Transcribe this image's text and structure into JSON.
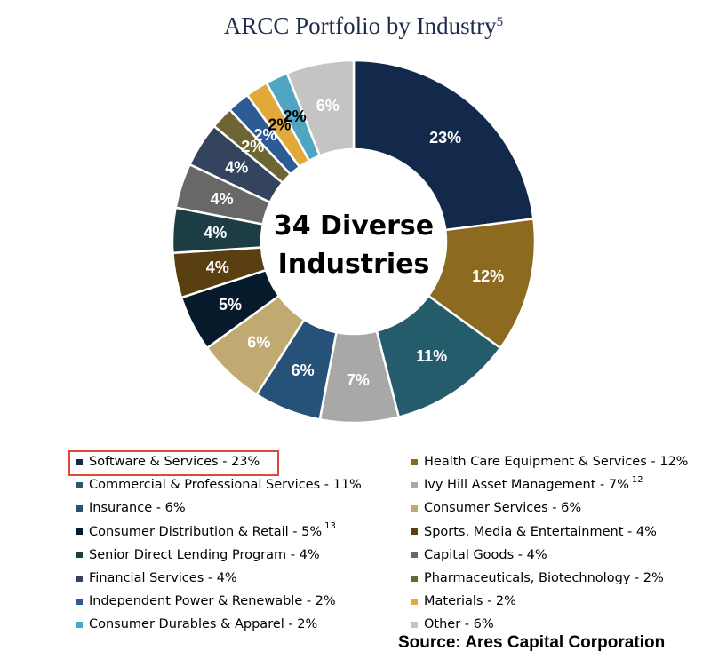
{
  "title": "ARCC Portfolio by Industry",
  "title_superscript": "5",
  "center_label_line1": "34 Diverse",
  "center_label_line2": "Industries",
  "source": "Source: Ares Capital Corporation",
  "chart_data": {
    "type": "pie",
    "title": "ARCC Portfolio by Industry",
    "slices": [
      {
        "name": "Software & Services",
        "value": 23,
        "label": "23%",
        "color": "#13294b",
        "label_color": "#ffffff"
      },
      {
        "name": "Health Care Equipment & Services",
        "value": 12,
        "label": "12%",
        "color": "#8c6a1f",
        "label_color": "#ffffff"
      },
      {
        "name": "Commercial & Professional Services",
        "value": 11,
        "label": "11%",
        "color": "#245c6b",
        "label_color": "#ffffff"
      },
      {
        "name": "Ivy Hill Asset Management",
        "value": 7,
        "label": "7%",
        "color": "#a8a8a6",
        "label_color": "#ffffff"
      },
      {
        "name": "Insurance",
        "value": 6,
        "label": "6%",
        "color": "#26527a",
        "label_color": "#ffffff"
      },
      {
        "name": "Consumer Services",
        "value": 6,
        "label": "6%",
        "color": "#c0aa72",
        "label_color": "#ffffff"
      },
      {
        "name": "Consumer Distribution & Retail",
        "value": 5,
        "label": "5%",
        "color": "#071a2b",
        "label_color": "#ffffff"
      },
      {
        "name": "Sports, Media & Entertainment",
        "value": 4,
        "label": "4%",
        "color": "#5a3f10",
        "label_color": "#ffffff"
      },
      {
        "name": "Senior Direct Lending Program",
        "value": 4,
        "label": "4%",
        "color": "#1c3d44",
        "label_color": "#ffffff"
      },
      {
        "name": "Capital Goods",
        "value": 4,
        "label": "4%",
        "color": "#686868",
        "label_color": "#ffffff"
      },
      {
        "name": "Financial Services",
        "value": 4,
        "label": "4%",
        "color": "#34435e",
        "label_color": "#ffffff"
      },
      {
        "name": "Pharmaceuticals, Biotechnology",
        "value": 2,
        "label": "2%",
        "color": "#6e6535",
        "label_color": "#ffffff"
      },
      {
        "name": "Independent Power & Renewable",
        "value": 2,
        "label": "2%",
        "color": "#2d5b95",
        "label_color": "#ffffff"
      },
      {
        "name": "Materials",
        "value": 2,
        "label": "2%",
        "color": "#e0a93a",
        "label_color": "#000000"
      },
      {
        "name": "Consumer Durables & Apparel",
        "value": 2,
        "label": "2%",
        "color": "#4fa5c2",
        "label_color": "#000000"
      },
      {
        "name": "Other",
        "value": 6,
        "label": "6%",
        "color": "#c4c4c2",
        "label_color": "#ffffff"
      }
    ]
  },
  "legend": [
    {
      "text": "Software & Services - 23%",
      "sup": "",
      "color": "#13294b",
      "highlighted": true
    },
    {
      "text": "Health Care Equipment & Services - 12%",
      "sup": "",
      "color": "#8c6a1f"
    },
    {
      "text": "Commercial & Professional Services - 11%",
      "sup": "",
      "color": "#245c6b"
    },
    {
      "text": "Ivy Hill Asset Management  - 7%",
      "sup": "12",
      "color": "#a8a8a6"
    },
    {
      "text": "Insurance - 6%",
      "sup": "",
      "color": "#26527a"
    },
    {
      "text": "Consumer Services - 6%",
      "sup": "",
      "color": "#c0aa72"
    },
    {
      "text": "Consumer Distribution & Retail  - 5%",
      "sup": "13",
      "color": "#071a2b"
    },
    {
      "text": "Sports, Media & Entertainment - 4%",
      "sup": "",
      "color": "#5a3f10"
    },
    {
      "text": "Senior Direct Lending Program - 4%",
      "sup": "",
      "color": "#1c3d44"
    },
    {
      "text": "Capital Goods - 4%",
      "sup": "",
      "color": "#686868"
    },
    {
      "text": "Financial Services - 4%",
      "sup": "",
      "color": "#34435e"
    },
    {
      "text": "Pharmaceuticals, Biotechnology  - 2%",
      "sup": "",
      "color": "#6e6535"
    },
    {
      "text": "Independent Power & Renewable - 2%",
      "sup": "",
      "color": "#2d5b95"
    },
    {
      "text": "Materials - 2%",
      "sup": "",
      "color": "#e0a93a"
    },
    {
      "text": "Consumer Durables & Apparel - 2%",
      "sup": "",
      "color": "#4fa5c2"
    },
    {
      "text": "Other - 6%",
      "sup": "",
      "color": "#c4c4c2"
    }
  ]
}
